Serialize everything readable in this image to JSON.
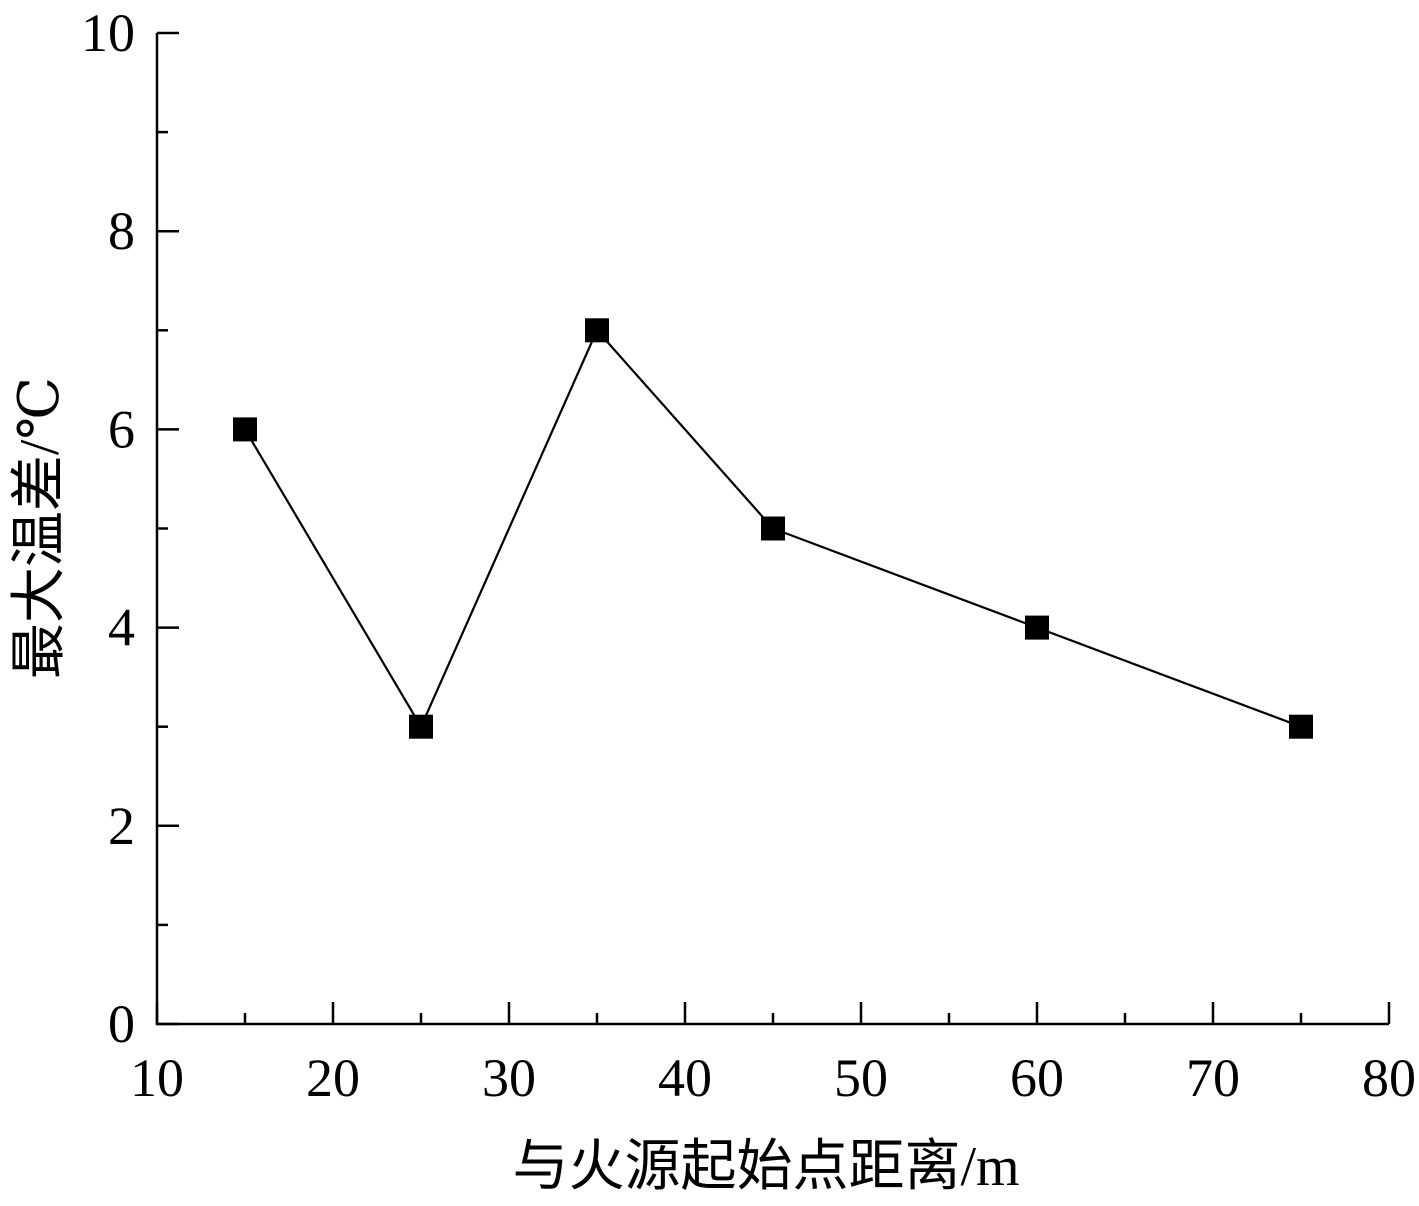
{
  "chart_data": {
    "type": "line",
    "title": "",
    "xlabel": "与火源起始点距离/m",
    "ylabel": "最大温差/℃",
    "xlim": [
      10,
      80
    ],
    "ylim": [
      0,
      10
    ],
    "x_ticks": [
      10,
      20,
      30,
      40,
      50,
      60,
      70,
      80
    ],
    "y_ticks": [
      0,
      2,
      4,
      6,
      8,
      10
    ],
    "x_minor_step": 5,
    "y_minor_step": 1,
    "grid": false,
    "legend": "none",
    "marker": "filled-square",
    "color": "#000000",
    "series": [
      {
        "x": [
          15,
          25,
          35,
          45,
          60,
          75
        ],
        "y": [
          6,
          3,
          7,
          5,
          4,
          3
        ]
      }
    ]
  }
}
